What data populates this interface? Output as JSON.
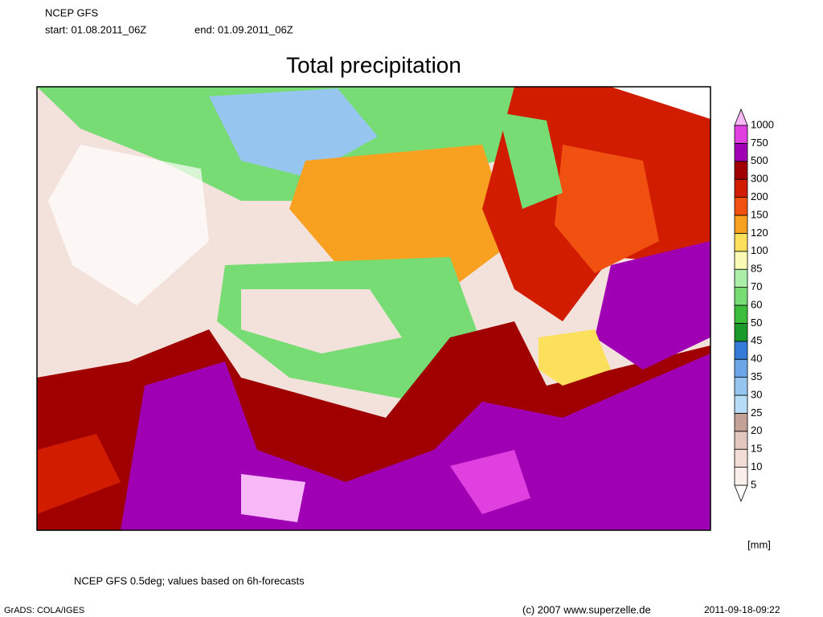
{
  "header": {
    "model": "NCEP GFS",
    "start": "start: 01.08.2011_06Z",
    "end": "end: 01.09.2011_06Z"
  },
  "title": "Total precipitation",
  "legend": {
    "levels": [
      5,
      10,
      15,
      20,
      25,
      30,
      35,
      40,
      45,
      50,
      60,
      70,
      85,
      100,
      120,
      150,
      200,
      300,
      500,
      750,
      1000
    ],
    "colors": [
      "#ffffff",
      "#fbefec",
      "#f1ddd6",
      "#e2c7be",
      "#c4a197",
      "#b6dcf6",
      "#96c6f0",
      "#6aa6e8",
      "#347cd8",
      "#1a9a2a",
      "#3cbe3c",
      "#78dc74",
      "#aaeeaa",
      "#fafab4",
      "#fce05c",
      "#f8a020",
      "#f05010",
      "#d21c00",
      "#a00000",
      "#a000b4",
      "#e040e0",
      "#f8b8f8"
    ],
    "unit": "[mm]"
  },
  "footer": {
    "note": "NCEP GFS 0.5deg; values based on 6h-forecasts",
    "software": "GrADS: COLA/IGES",
    "copyright": "(c) 2007 www.superzelle.de",
    "timestamp": "2011-09-18-09:22"
  }
}
